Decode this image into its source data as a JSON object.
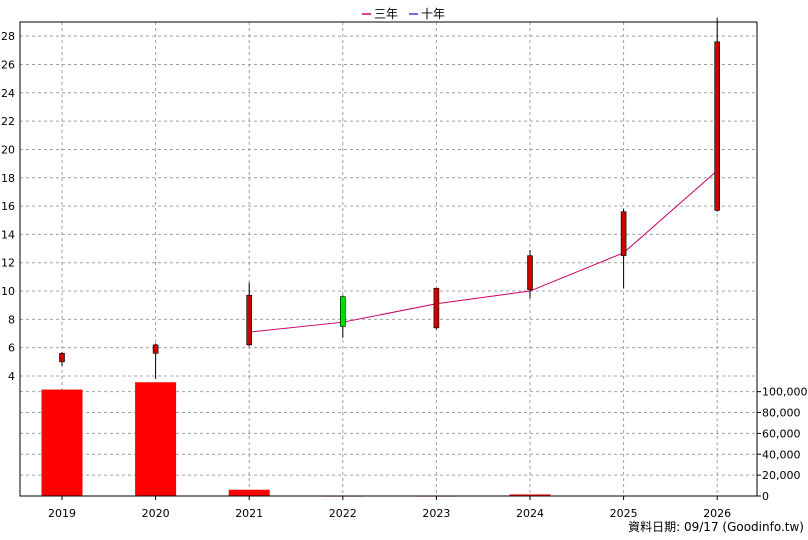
{
  "legend": [
    {
      "name": "三年",
      "color": "#cc0066"
    },
    {
      "name": "十年",
      "color": "#6633cc"
    }
  ],
  "footer": "資料日期: 09/17  (Goodinfo.tw)",
  "chart_data": {
    "type": "candlestick",
    "categories": [
      "2019",
      "2020",
      "2021",
      "2022",
      "2023",
      "2024",
      "2025",
      "2026"
    ],
    "price_axis": {
      "ylim": [
        4,
        29
      ],
      "ticks": [
        4,
        6,
        8,
        10,
        12,
        14,
        16,
        18,
        20,
        22,
        24,
        26,
        28
      ]
    },
    "volume_axis": {
      "ylim": [
        0,
        115000
      ],
      "ticks": [
        0,
        20000,
        40000,
        60000,
        80000,
        100000
      ],
      "tick_labels": [
        "0",
        "20,000",
        "40,000",
        "60,000",
        "80,000",
        "100,000"
      ]
    },
    "candles": [
      {
        "year": "2019",
        "open": 5.0,
        "high": 5.7,
        "low": 4.7,
        "close": 5.6
      },
      {
        "year": "2020",
        "open": 5.6,
        "high": 6.3,
        "low": 3.8,
        "close": 6.2
      },
      {
        "year": "2021",
        "open": 6.2,
        "high": 10.6,
        "low": 6.1,
        "close": 9.7
      },
      {
        "year": "2022",
        "open": 9.6,
        "high": 9.7,
        "low": 6.7,
        "close": 7.5
      },
      {
        "year": "2023",
        "open": 7.4,
        "high": 10.2,
        "low": 7.3,
        "close": 10.2
      },
      {
        "year": "2024",
        "open": 10.1,
        "high": 12.9,
        "low": 9.5,
        "close": 12.5
      },
      {
        "year": "2025",
        "open": 12.5,
        "high": 15.8,
        "low": 10.2,
        "close": 15.6
      },
      {
        "year": "2026",
        "open": 15.7,
        "high": 29.3,
        "low": 15.6,
        "close": 27.6
      }
    ],
    "up_color": "#cc0000",
    "down_color": "#00dd00",
    "volume": [
      102000,
      109000,
      6000,
      400,
      400,
      1500,
      null,
      null
    ],
    "volume_color": "#ff0000",
    "series": [
      {
        "name": "三年",
        "color": "#cc0066",
        "values": [
          null,
          null,
          7.1,
          7.8,
          9.1,
          10.0,
          12.7,
          18.5
        ]
      }
    ],
    "grid": true
  }
}
